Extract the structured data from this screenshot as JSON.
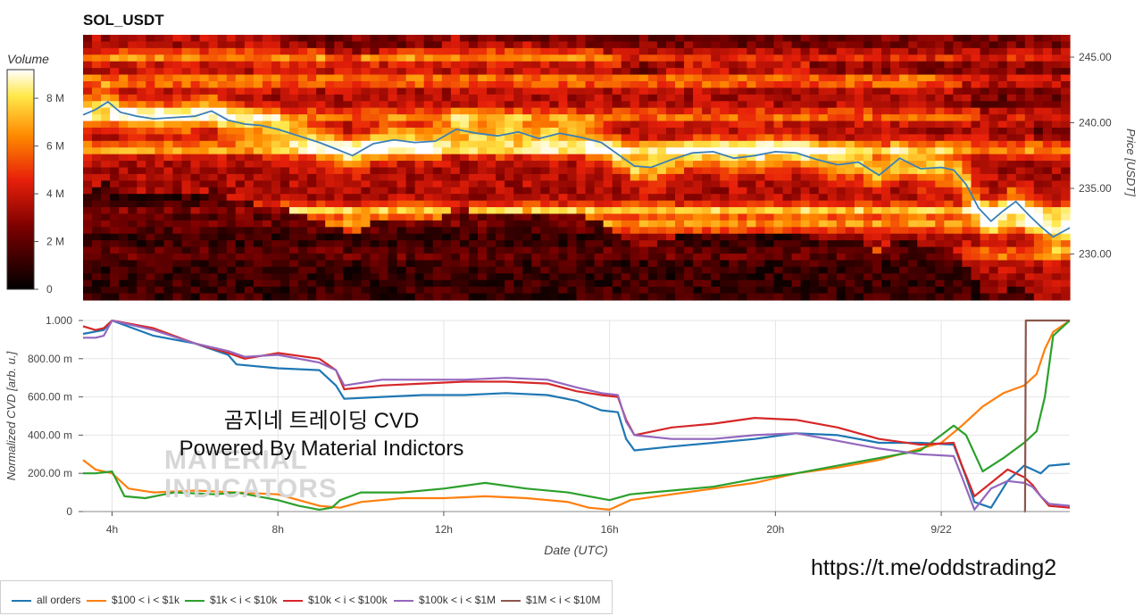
{
  "heatmap_title": "SOL_USDT",
  "colorbar": {
    "title": "Volume",
    "ticks": [
      "0",
      "2 M",
      "4 M",
      "6 M",
      "8 M"
    ],
    "tick_values": [
      0,
      2,
      4,
      6,
      8
    ],
    "max": 9.2
  },
  "colors": {
    "all_orders": "#1f77b4",
    "s100_1k": "#ff7f0e",
    "s1k_10k": "#2ca02c",
    "s10k_100k": "#d62728",
    "s100k_1M": "#9467bd",
    "s1M_10M": "#8c564b",
    "price_line": "#3b7fb6"
  },
  "watermark": {
    "line1": "곰지네 트레이딩 CVD",
    "line2": "Powered By Material Indictors",
    "logo_line1": "MATERIAL",
    "logo_line2": "INDICATORS"
  },
  "url": "https://t.me/oddstrading2",
  "legend": [
    {
      "label": "all orders",
      "color": "#1f77b4"
    },
    {
      "label": "$100 < i < $1k",
      "color": "#ff7f0e"
    },
    {
      "label": "$1k < i < $10k",
      "color": "#2ca02c"
    },
    {
      "label": "$10k < i < $100k",
      "color": "#d62728"
    },
    {
      "label": "$100k < i < $1M",
      "color": "#9467bd"
    },
    {
      "label": "$1M < i < $10M",
      "color": "#8c564b"
    }
  ],
  "chart_data": [
    {
      "type": "heatmap",
      "title": "SOL_USDT",
      "ylabel": "Price [USDT]",
      "y_ticks": [
        "230.00",
        "235.00",
        "240.00",
        "245.00"
      ],
      "y_tick_values": [
        230,
        235,
        240,
        245
      ],
      "ylim": [
        226.5,
        246.7
      ],
      "xlim_hours": [
        3.3,
        27.1
      ],
      "colorbar_label": "Volume",
      "price_series": {
        "x_hours": [
          3.3,
          3.6,
          3.9,
          4.2,
          4.6,
          5.0,
          5.5,
          6.0,
          6.4,
          6.8,
          7.2,
          7.6,
          8.0,
          8.5,
          9.0,
          9.4,
          9.8,
          10.3,
          10.8,
          11.3,
          11.8,
          12.3,
          12.8,
          13.3,
          13.8,
          14.3,
          14.8,
          15.3,
          15.8,
          16.2,
          16.6,
          17.0,
          17.5,
          18.0,
          18.5,
          19.0,
          19.5,
          20.0,
          20.5,
          21.0,
          21.5,
          22.0,
          22.5,
          23.0,
          23.5,
          24.0,
          24.3,
          24.6,
          24.9,
          25.2,
          25.5,
          25.8,
          26.1,
          26.4,
          26.7,
          27.1
        ],
        "price": [
          240.6,
          241.0,
          241.6,
          240.8,
          240.5,
          240.3,
          240.4,
          240.5,
          240.9,
          240.2,
          239.9,
          239.8,
          239.5,
          239.0,
          238.5,
          238.0,
          237.5,
          238.4,
          238.7,
          238.5,
          238.6,
          239.5,
          239.2,
          239.0,
          239.3,
          238.8,
          239.2,
          238.9,
          238.5,
          237.6,
          236.7,
          236.6,
          237.2,
          237.7,
          237.8,
          237.3,
          237.5,
          237.8,
          237.7,
          237.2,
          236.8,
          237.0,
          236.0,
          237.3,
          236.5,
          236.6,
          236.4,
          235.3,
          233.5,
          232.5,
          233.3,
          234.0,
          233.0,
          232.1,
          231.3,
          232.0
        ]
      }
    },
    {
      "type": "line",
      "xlabel": "Date (UTC)",
      "ylabel": "Normalized CVD [arb. u.]",
      "x_ticks": [
        "4h",
        "8h",
        "12h",
        "16h",
        "20h",
        "9/22"
      ],
      "x_tick_hours": [
        4,
        8,
        12,
        16,
        20,
        24
      ],
      "y_ticks": [
        "0",
        "200.00 m",
        "400.00 m",
        "600.00 m",
        "800.00 m",
        "1.000"
      ],
      "y_tick_values": [
        0,
        0.2,
        0.4,
        0.6,
        0.8,
        1.0
      ],
      "ylim": [
        0,
        1.0
      ],
      "xlim_hours": [
        3.3,
        27.1
      ],
      "series": [
        {
          "name": "all orders",
          "x": [
            3.3,
            3.8,
            4.0,
            5.0,
            6.0,
            6.8,
            7.0,
            8.0,
            9.0,
            9.4,
            9.6,
            10.5,
            11.5,
            12.5,
            13.5,
            14.5,
            15.2,
            15.8,
            16.2,
            16.4,
            16.6,
            17.5,
            18.5,
            19.5,
            20.5,
            21.5,
            22.5,
            23.5,
            24.3,
            24.6,
            24.8,
            25.2,
            25.6,
            26.0,
            26.2,
            26.4,
            26.6,
            27.1
          ],
          "y": [
            0.93,
            0.95,
            1.0,
            0.92,
            0.88,
            0.82,
            0.77,
            0.75,
            0.74,
            0.66,
            0.59,
            0.6,
            0.61,
            0.61,
            0.62,
            0.61,
            0.58,
            0.53,
            0.52,
            0.38,
            0.32,
            0.34,
            0.36,
            0.38,
            0.41,
            0.4,
            0.36,
            0.36,
            0.35,
            0.18,
            0.05,
            0.02,
            0.16,
            0.24,
            0.22,
            0.2,
            0.24,
            0.25
          ]
        },
        {
          "name": "$100 < i < $1k",
          "x": [
            3.3,
            3.6,
            4.0,
            4.4,
            5.0,
            6.0,
            7.0,
            8.0,
            9.0,
            9.5,
            10.0,
            11.0,
            12.0,
            13.0,
            14.0,
            15.0,
            15.5,
            16.0,
            16.5,
            17.5,
            18.5,
            19.5,
            20.5,
            21.5,
            22.5,
            23.5,
            24.0,
            24.5,
            25.0,
            25.5,
            26.0,
            26.3,
            26.5,
            26.7,
            27.1
          ],
          "y": [
            0.27,
            0.22,
            0.2,
            0.12,
            0.1,
            0.11,
            0.1,
            0.09,
            0.03,
            0.02,
            0.05,
            0.07,
            0.07,
            0.08,
            0.07,
            0.05,
            0.02,
            0.01,
            0.06,
            0.09,
            0.12,
            0.15,
            0.2,
            0.23,
            0.27,
            0.33,
            0.36,
            0.45,
            0.55,
            0.62,
            0.66,
            0.72,
            0.85,
            0.94,
            1.0
          ]
        },
        {
          "name": "$1k < i < $10k",
          "x": [
            3.3,
            3.6,
            4.0,
            4.3,
            4.8,
            5.5,
            6.5,
            7.0,
            8.0,
            8.5,
            9.0,
            9.3,
            9.5,
            10.0,
            11.0,
            12.0,
            13.0,
            14.0,
            15.0,
            15.5,
            16.0,
            16.5,
            17.5,
            18.5,
            19.5,
            20.5,
            21.5,
            22.5,
            23.5,
            24.0,
            24.3,
            24.6,
            25.0,
            25.5,
            26.0,
            26.3,
            26.5,
            26.7,
            27.1
          ],
          "y": [
            0.2,
            0.2,
            0.21,
            0.08,
            0.07,
            0.1,
            0.09,
            0.1,
            0.06,
            0.03,
            0.01,
            0.02,
            0.06,
            0.1,
            0.1,
            0.12,
            0.15,
            0.12,
            0.1,
            0.08,
            0.06,
            0.09,
            0.11,
            0.13,
            0.17,
            0.2,
            0.24,
            0.28,
            0.32,
            0.4,
            0.45,
            0.4,
            0.21,
            0.28,
            0.36,
            0.42,
            0.6,
            0.92,
            1.0
          ]
        },
        {
          "name": "$10k < i < $100k",
          "x": [
            3.3,
            3.6,
            3.8,
            4.0,
            5.0,
            6.0,
            6.8,
            7.2,
            8.0,
            9.0,
            9.4,
            9.6,
            10.5,
            11.5,
            12.5,
            13.5,
            14.5,
            15.2,
            15.8,
            16.2,
            16.4,
            16.6,
            17.5,
            18.5,
            19.5,
            20.5,
            21.5,
            22.5,
            23.5,
            24.3,
            24.5,
            24.8,
            25.2,
            25.6,
            26.0,
            26.2,
            26.4,
            26.6,
            27.1
          ],
          "y": [
            0.97,
            0.95,
            0.96,
            1.0,
            0.96,
            0.88,
            0.83,
            0.8,
            0.83,
            0.8,
            0.74,
            0.64,
            0.66,
            0.67,
            0.68,
            0.68,
            0.67,
            0.63,
            0.61,
            0.6,
            0.48,
            0.4,
            0.44,
            0.46,
            0.49,
            0.48,
            0.44,
            0.38,
            0.35,
            0.36,
            0.24,
            0.08,
            0.15,
            0.22,
            0.18,
            0.14,
            0.08,
            0.03,
            0.02
          ]
        },
        {
          "name": "$100k < i < $1M",
          "x": [
            3.3,
            3.6,
            3.8,
            4.0,
            5.0,
            6.0,
            6.8,
            7.2,
            8.0,
            9.0,
            9.4,
            9.6,
            10.5,
            11.5,
            12.5,
            13.5,
            14.5,
            15.2,
            15.8,
            16.2,
            16.4,
            16.6,
            17.5,
            18.5,
            19.5,
            20.5,
            21.5,
            22.5,
            23.5,
            24.3,
            24.5,
            24.8,
            25.2,
            25.6,
            26.0,
            26.2,
            26.4,
            26.6,
            27.1
          ],
          "y": [
            0.91,
            0.91,
            0.92,
            1.0,
            0.95,
            0.88,
            0.84,
            0.81,
            0.82,
            0.78,
            0.74,
            0.66,
            0.69,
            0.69,
            0.69,
            0.7,
            0.69,
            0.65,
            0.62,
            0.61,
            0.47,
            0.4,
            0.38,
            0.38,
            0.4,
            0.41,
            0.37,
            0.33,
            0.3,
            0.29,
            0.18,
            0.01,
            0.12,
            0.16,
            0.15,
            0.13,
            0.08,
            0.04,
            0.03
          ]
        },
        {
          "name": "$1M < i < $10M",
          "x": [
            26.0,
            26.02,
            26.04,
            26.5,
            27.1
          ],
          "y": [
            0.0,
            0.0,
            1.0,
            1.0,
            1.0
          ]
        }
      ]
    }
  ]
}
